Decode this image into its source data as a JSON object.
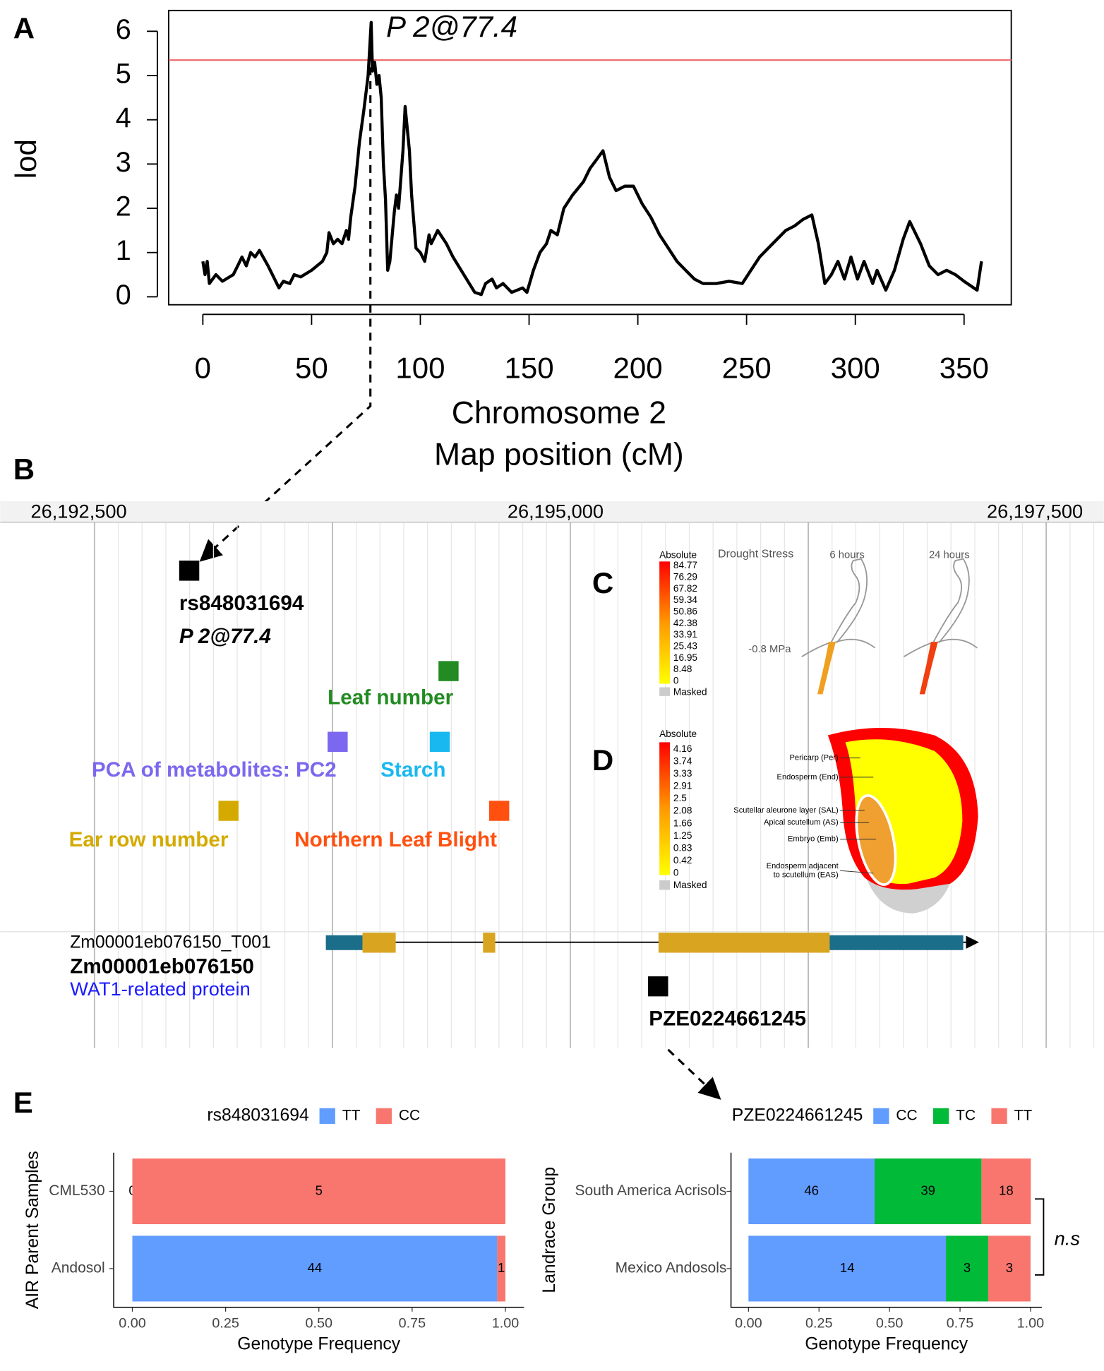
{
  "panel_labels": [
    "A",
    "B",
    "C",
    "D",
    "E"
  ],
  "chart_data": [
    {
      "type": "line",
      "ylabel": "lod",
      "xlabel": [
        "Chromosome 2",
        "Map position (cM)"
      ],
      "annotation": "P 2@77.4",
      "threshold": 5.35,
      "threshold_color": "#f07070",
      "color": "#000000",
      "xlim": [
        -15.7,
        371.7
      ],
      "ylim": [
        -0.18,
        6.47
      ],
      "xticks": [
        0,
        50,
        100,
        150,
        200,
        250,
        300,
        350
      ],
      "yticks": [
        0,
        1,
        2,
        3,
        4,
        5,
        6
      ],
      "x": [
        0,
        1,
        2,
        3,
        6,
        9,
        14,
        16,
        18,
        20,
        22,
        24,
        26,
        30,
        35,
        37,
        40,
        42,
        45,
        50,
        55,
        57,
        58,
        60,
        62,
        64,
        66,
        67,
        68,
        70,
        72,
        74,
        76,
        77.4,
        78,
        79,
        80,
        81,
        82,
        83,
        84,
        85,
        86,
        88,
        89,
        90,
        92,
        93,
        95,
        96,
        98,
        100,
        102,
        104,
        105,
        108,
        112,
        115,
        120,
        125,
        128,
        130,
        133,
        135,
        138,
        142,
        147,
        149,
        152,
        155,
        158,
        160,
        163,
        166,
        170,
        175,
        178,
        181,
        184,
        187,
        190,
        194,
        198,
        202,
        206,
        210,
        214,
        218,
        222,
        226,
        230,
        236,
        242,
        248,
        252,
        256,
        260,
        264,
        268,
        272,
        276,
        280,
        283,
        286,
        289,
        292,
        295,
        298,
        301,
        304,
        308,
        310,
        314,
        318,
        322,
        325,
        330,
        334,
        338,
        342,
        346,
        350,
        356,
        358
      ],
      "values": [
        0.8,
        0.5,
        0.8,
        0.3,
        0.5,
        0.35,
        0.5,
        0.7,
        0.9,
        0.7,
        1.0,
        0.9,
        1.05,
        0.7,
        0.2,
        0.35,
        0.3,
        0.5,
        0.45,
        0.6,
        0.8,
        1.0,
        1.45,
        1.2,
        1.3,
        1.2,
        1.5,
        1.3,
        1.8,
        2.5,
        3.5,
        4.2,
        5.0,
        6.2,
        5.1,
        5.3,
        4.8,
        5.0,
        4.5,
        3.0,
        2.2,
        0.6,
        0.8,
        1.9,
        2.3,
        2.0,
        3.3,
        4.3,
        3.3,
        2.3,
        1.1,
        1.0,
        0.8,
        1.4,
        1.2,
        1.5,
        1.2,
        0.9,
        0.5,
        0.1,
        0.05,
        0.3,
        0.4,
        0.2,
        0.3,
        0.1,
        0.2,
        0.1,
        0.6,
        1.0,
        1.2,
        1.5,
        1.4,
        2.0,
        2.3,
        2.6,
        2.9,
        3.1,
        3.3,
        2.7,
        2.4,
        2.5,
        2.5,
        2.1,
        1.8,
        1.4,
        1.1,
        0.8,
        0.6,
        0.4,
        0.3,
        0.3,
        0.35,
        0.3,
        0.6,
        0.9,
        1.1,
        1.3,
        1.5,
        1.6,
        1.75,
        1.85,
        1.2,
        0.3,
        0.5,
        0.8,
        0.4,
        0.9,
        0.4,
        0.8,
        0.3,
        0.6,
        0.15,
        0.6,
        1.3,
        1.7,
        1.2,
        0.7,
        0.5,
        0.6,
        0.5,
        0.35,
        0.15,
        0.8
      ]
    },
    {
      "type": "bar",
      "orientation": "horizontal",
      "stacked": true,
      "legend_title": "rs848031694",
      "ylabel": "AIR Parent Samples",
      "xlabel": "Genotype Frequency",
      "categories": [
        "CML530",
        "Andosol"
      ],
      "series": [
        {
          "name": "TT",
          "color": "#619cff",
          "values": [
            0,
            0.978
          ],
          "counts": [
            0,
            44
          ]
        },
        {
          "name": "CC",
          "color": "#f8766d",
          "values": [
            1,
            0.022
          ],
          "counts": [
            5,
            1
          ]
        }
      ],
      "xlim": [
        -0.05,
        1.05
      ],
      "xticks": [
        {
          "value": 0,
          "label": "0.00"
        },
        {
          "value": 0.25,
          "label": "0.25"
        },
        {
          "value": 0.5,
          "label": "0.50"
        },
        {
          "value": 0.75,
          "label": "0.75"
        },
        {
          "value": 1,
          "label": "1.00"
        }
      ]
    },
    {
      "type": "bar",
      "orientation": "horizontal",
      "stacked": true,
      "legend_title": "PZE0224661245",
      "ylabel": "Landrace Group",
      "xlabel": "Genotype Frequency",
      "annotation": "n.s",
      "categories": [
        "South America Acrisols",
        "Mexico Andosols"
      ],
      "series": [
        {
          "name": "CC",
          "color": "#619cff",
          "values": [
            0.447,
            0.7
          ],
          "counts": [
            46,
            14
          ]
        },
        {
          "name": "TC",
          "color": "#00ba38",
          "values": [
            0.379,
            0.15
          ],
          "counts": [
            39,
            3
          ]
        },
        {
          "name": "TT",
          "color": "#f8766d",
          "values": [
            0.175,
            0.15
          ],
          "counts": [
            18,
            3
          ]
        }
      ],
      "xlim": [
        -0.062,
        1.04
      ],
      "xticks": [
        {
          "value": 0,
          "label": "0.00"
        },
        {
          "value": 0.25,
          "label": "0.25"
        },
        {
          "value": 0.5,
          "label": "0.50"
        },
        {
          "value": 0.75,
          "label": "0.75"
        },
        {
          "value": 1,
          "label": "1.00"
        }
      ]
    }
  ],
  "genome_browser": {
    "coordinates": [
      "26,192,500",
      "26,195,000",
      "26,197,500"
    ],
    "snps": [
      {
        "id": "rs848031694",
        "qtl": "P 2@77.4"
      },
      {
        "id": "PZE0224661245"
      }
    ],
    "traits": [
      {
        "label": "Leaf number",
        "color": "#228b22"
      },
      {
        "label": "PCA of metabolites: PC2",
        "color": "#7b68ee"
      },
      {
        "label": "Starch",
        "color": "#1ab8f0"
      },
      {
        "label": "Ear row number",
        "color": "#d4aa00"
      },
      {
        "label": "Northern Leaf Blight",
        "color": "#ff5010"
      }
    ],
    "gene": {
      "transcript": "Zm00001eb076150_T001",
      "id": "Zm00001eb076150",
      "description": "WAT1-related protein"
    }
  },
  "panel_c": {
    "scale_title": "Absolute",
    "scale_values": [
      84.77,
      76.29,
      67.82,
      59.34,
      50.86,
      42.38,
      33.91,
      25.43,
      16.95,
      8.48,
      0
    ],
    "masked": "Masked",
    "title": "Drought Stress",
    "conditions": [
      "6 hours",
      "24 hours"
    ],
    "treatment": "-0.8 MPa"
  },
  "panel_d": {
    "scale_title": "Absolute",
    "scale_values": [
      4.16,
      3.74,
      3.33,
      2.91,
      2.5,
      2.08,
      1.66,
      1.25,
      0.83,
      0.42,
      0
    ],
    "masked": "Masked",
    "tissues": [
      [
        "Pericarp (Per)"
      ],
      [
        "Endosperm (End)"
      ],
      [
        "Scutellar aleurone layer (SAL)"
      ],
      [
        "Apical scutellum (AS)"
      ],
      [
        "Embryo (Emb)"
      ],
      [
        "Endosperm adjacent",
        "to scutellum (EAS)"
      ]
    ]
  }
}
